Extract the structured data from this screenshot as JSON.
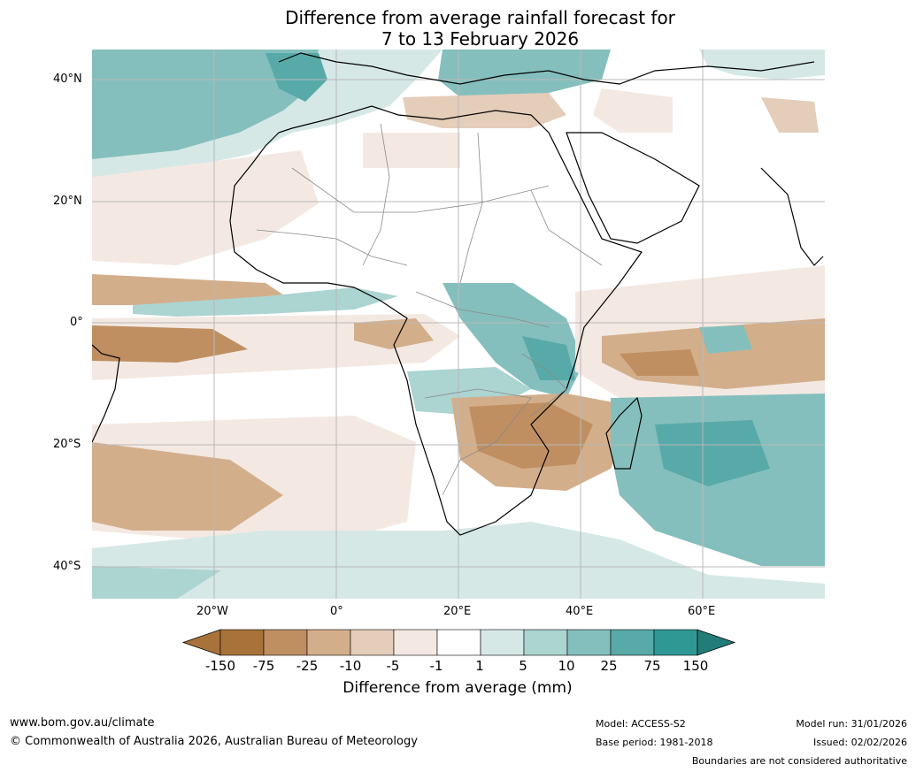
{
  "title": {
    "line1": "Difference from average rainfall forecast for",
    "line2": "7 to 13 February 2026"
  },
  "axes": {
    "lat_labels": [
      "40°N",
      "20°N",
      "0°",
      "20°S",
      "40°S"
    ],
    "lon_labels": [
      "20°W",
      "0°",
      "20°E",
      "40°E",
      "60°E"
    ]
  },
  "colorbar": {
    "title": "Difference from average (mm)",
    "tick_labels": [
      "-150",
      "-75",
      "-25",
      "-10",
      "-5",
      "-1",
      "1",
      "5",
      "10",
      "25",
      "75",
      "150"
    ],
    "colors": [
      "#a8733a",
      "#bf8f62",
      "#d3ae8b",
      "#e4cdb9",
      "#f3e9e2",
      "#ffffff",
      "#d5e8e6",
      "#acd4d1",
      "#84bfbd",
      "#58aaa8",
      "#2f9894",
      "#227d79"
    ]
  },
  "footer": {
    "website": "www.bom.gov.au/climate",
    "copyright": "© Commonwealth of Australia 2026, Australian Bureau of Meteorology",
    "model": "Model: ACCESS-S2",
    "base_period": "Base period: 1981-2018",
    "model_run": "Model run: 31/01/2026",
    "issued": "Issued: 02/02/2026",
    "disclaimer": "Boundaries are not considered authoritative"
  }
}
